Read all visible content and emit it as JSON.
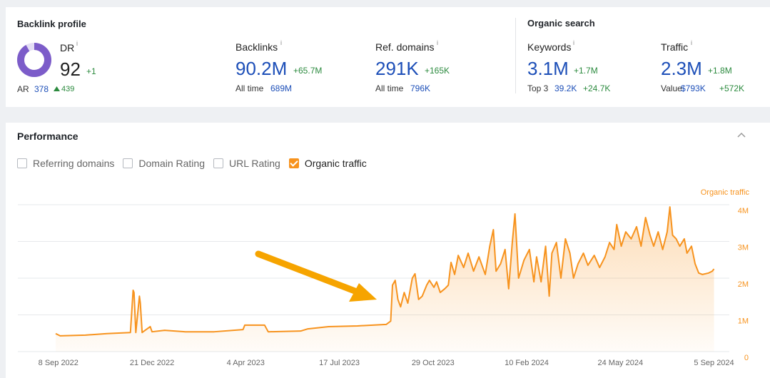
{
  "backlink_profile": {
    "title": "Backlink profile",
    "info_marker": "i",
    "dr": {
      "label": "DR",
      "value": 92,
      "change": "+1"
    },
    "ar": {
      "label": "AR",
      "value": "378",
      "change": "439"
    },
    "backlinks": {
      "label": "Backlinks",
      "value": "90.2M",
      "change": "+65.7M",
      "sub_label": "All time",
      "sub_value": "689M"
    },
    "ref_domains": {
      "label": "Ref. domains",
      "value": "291K",
      "change": "+165K",
      "sub_label": "All time",
      "sub_value": "796K"
    }
  },
  "organic_search": {
    "title": "Organic search",
    "keywords": {
      "label": "Keywords",
      "value": "3.1M",
      "change": "+1.7M",
      "sub_label": "Top 3",
      "sub_value": "39.2K",
      "sub_change": "+24.7K"
    },
    "traffic": {
      "label": "Traffic",
      "value": "2.3M",
      "change": "+1.8M",
      "sub_label": "Value",
      "sub_value": "$793K",
      "sub_change": "+572K"
    }
  },
  "performance": {
    "title": "Performance",
    "toggles": [
      {
        "label": "Referring domains",
        "checked": false
      },
      {
        "label": "Domain Rating",
        "checked": false
      },
      {
        "label": "URL Rating",
        "checked": false
      },
      {
        "label": "Organic traffic",
        "checked": true
      }
    ]
  },
  "chart_data": {
    "type": "line",
    "grid": true,
    "area": true,
    "x": [
      "2022-09-05",
      "2022-09-10",
      "2022-10-08",
      "2022-11-01",
      "2022-11-27",
      "2022-11-30",
      "2022-12-01",
      "2022-12-03",
      "2022-12-07",
      "2022-12-08",
      "2022-12-10",
      "2022-12-19",
      "2022-12-21",
      "2023-01-04",
      "2023-01-27",
      "2023-02-28",
      "2023-04-01",
      "2023-04-03",
      "2023-04-25",
      "2023-04-29",
      "2023-06-04",
      "2023-06-12",
      "2023-07-05",
      "2023-08-06",
      "2023-09-07",
      "2023-09-12",
      "2023-09-14",
      "2023-09-17",
      "2023-09-20",
      "2023-09-23",
      "2023-09-27",
      "2023-10-01",
      "2023-10-06",
      "2023-10-09",
      "2023-10-13",
      "2023-10-17",
      "2023-10-22",
      "2023-10-25",
      "2023-10-30",
      "2023-11-02",
      "2023-11-06",
      "2023-11-11",
      "2023-11-15",
      "2023-11-18",
      "2023-11-22",
      "2023-11-26",
      "2023-12-02",
      "2023-12-07",
      "2023-12-13",
      "2023-12-19",
      "2023-12-26",
      "2023-12-31",
      "2024-01-04",
      "2024-01-07",
      "2024-01-12",
      "2024-01-17",
      "2024-01-21",
      "2024-01-25",
      "2024-01-28",
      "2024-02-01",
      "2024-02-07",
      "2024-02-13",
      "2024-02-18",
      "2024-02-21",
      "2024-02-26",
      "2024-03-02",
      "2024-03-06",
      "2024-03-09",
      "2024-03-14",
      "2024-03-19",
      "2024-03-24",
      "2024-03-29",
      "2024-04-02",
      "2024-04-07",
      "2024-04-13",
      "2024-04-18",
      "2024-04-25",
      "2024-05-01",
      "2024-05-07",
      "2024-05-12",
      "2024-05-17",
      "2024-05-20",
      "2024-05-25",
      "2024-05-30",
      "2024-06-05",
      "2024-06-11",
      "2024-06-16",
      "2024-06-21",
      "2024-06-26",
      "2024-06-30",
      "2024-07-05",
      "2024-07-10",
      "2024-07-15",
      "2024-07-18",
      "2024-07-21",
      "2024-07-25",
      "2024-07-29",
      "2024-08-03",
      "2024-08-06",
      "2024-08-11",
      "2024-08-15",
      "2024-08-19",
      "2024-08-23",
      "2024-08-30",
      "2024-09-03",
      "2024-09-05"
    ],
    "series": [
      {
        "name": "Organic traffic",
        "color": "#f7931e",
        "values": [
          490000,
          430000,
          450000,
          490000,
          520000,
          1670000,
          1610000,
          520000,
          1510000,
          1320000,
          520000,
          680000,
          540000,
          580000,
          540000,
          540000,
          600000,
          720000,
          720000,
          540000,
          560000,
          620000,
          680000,
          700000,
          740000,
          830000,
          1810000,
          1940000,
          1420000,
          1220000,
          1610000,
          1320000,
          2000000,
          2120000,
          1420000,
          1510000,
          1810000,
          1940000,
          1750000,
          1900000,
          1610000,
          1710000,
          1810000,
          2430000,
          2100000,
          2620000,
          2290000,
          2680000,
          2190000,
          2580000,
          2100000,
          2870000,
          3320000,
          2190000,
          2390000,
          2780000,
          1710000,
          2970000,
          3750000,
          2000000,
          2490000,
          2780000,
          1900000,
          2580000,
          1900000,
          2870000,
          1510000,
          2680000,
          2970000,
          2000000,
          3070000,
          2680000,
          2000000,
          2390000,
          2680000,
          2350000,
          2620000,
          2290000,
          2580000,
          2970000,
          2780000,
          3460000,
          2870000,
          3260000,
          3070000,
          3400000,
          2870000,
          3650000,
          3170000,
          2870000,
          3260000,
          2780000,
          3260000,
          3940000,
          3170000,
          3070000,
          2870000,
          3070000,
          2680000,
          2870000,
          2390000,
          2140000,
          2100000,
          2140000,
          2190000,
          2250000
        ]
      }
    ],
    "xlim": [
      "2022-07-25",
      "2024-09-22"
    ],
    "xticks": [
      {
        "value": "2022-09-08",
        "label": "8 Sep 2022"
      },
      {
        "value": "2022-12-21",
        "label": "21 Dec 2022"
      },
      {
        "value": "2023-04-04",
        "label": "4 Apr 2023"
      },
      {
        "value": "2023-07-17",
        "label": "17 Jul 2023"
      },
      {
        "value": "2023-10-29",
        "label": "29 Oct 2023"
      },
      {
        "value": "2024-02-10",
        "label": "10 Feb 2024"
      },
      {
        "value": "2024-05-24",
        "label": "24 May 2024"
      },
      {
        "value": "2024-09-05",
        "label": "5 Sep 2024"
      }
    ],
    "ylim": [
      0,
      4000000
    ],
    "yticks": [
      0,
      {
        "value": 1000000,
        "label": "1M"
      },
      {
        "value": 2000000,
        "label": "2M"
      },
      {
        "value": 3000000,
        "label": "3M"
      },
      {
        "value": 4000000,
        "label": "4M"
      }
    ]
  }
}
